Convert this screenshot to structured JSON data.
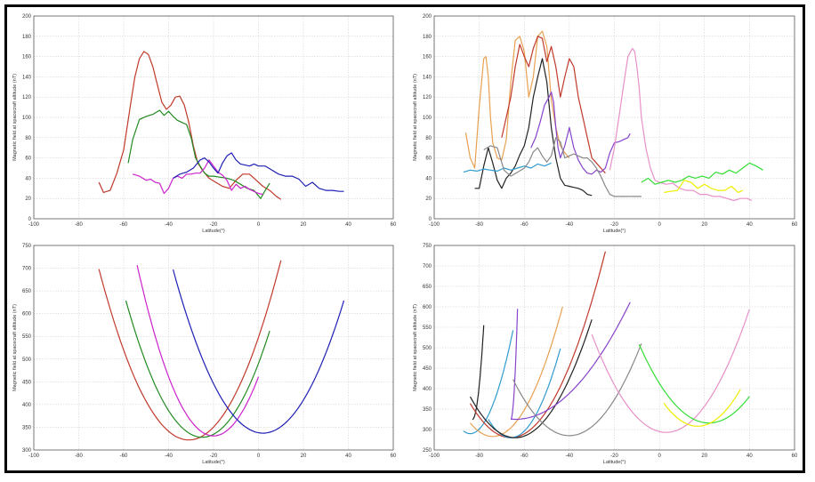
{
  "chart_data": [
    {
      "type": "line",
      "xlabel": "Latitude(°)",
      "ylabel": "Magnetic field at spacecraft altitude (nT)",
      "xlim": [
        -100,
        60
      ],
      "ylim": [
        0,
        200
      ],
      "xticks": [
        -100,
        -80,
        -60,
        -40,
        -20,
        0,
        20,
        40,
        60
      ],
      "yticks": [
        0,
        20,
        40,
        60,
        80,
        100,
        120,
        140,
        160,
        180,
        200
      ],
      "grid": true,
      "series": [
        {
          "color": "#c0392b",
          "x": [
            -71,
            -69,
            -66,
            -63,
            -60,
            -57,
            -55,
            -53,
            -51,
            -49,
            -47,
            -45,
            -43,
            -41,
            -39,
            -37,
            -35,
            -33,
            -31,
            -29,
            -27,
            -25,
            -22,
            -19,
            -16,
            -13,
            -10,
            -7,
            -4,
            -1,
            2,
            5,
            8,
            10
          ],
          "y": [
            36,
            26,
            28,
            45,
            68,
            112,
            140,
            158,
            165,
            162,
            150,
            132,
            115,
            108,
            112,
            120,
            121,
            112,
            95,
            72,
            55,
            48,
            40,
            36,
            32,
            30,
            38,
            44,
            44,
            38,
            32,
            28,
            22,
            19
          ]
        },
        {
          "color": "#228b22",
          "x": [
            -58,
            -56,
            -53,
            -50,
            -47,
            -44,
            -42,
            -40,
            -38,
            -36,
            -34,
            -32,
            -30,
            -28,
            -26,
            -24,
            -22,
            -20,
            -17,
            -14,
            -11,
            -8,
            -5,
            -2,
            1,
            3,
            5
          ],
          "y": [
            55,
            78,
            98,
            101,
            103,
            107,
            102,
            106,
            101,
            97,
            95,
            93,
            80,
            60,
            52,
            45,
            42,
            42,
            41,
            40,
            38,
            34,
            30,
            28,
            20,
            28,
            35
          ]
        },
        {
          "color": "#cc22cc",
          "x": [
            -56,
            -53,
            -50,
            -48,
            -46,
            -44,
            -42,
            -40,
            -38,
            -36,
            -34,
            -32,
            -30,
            -28,
            -26,
            -24,
            -22,
            -20,
            -18,
            -16,
            -14,
            -12,
            -10,
            -8,
            -6,
            -4,
            -2,
            0,
            2
          ],
          "y": [
            44,
            42,
            38,
            39,
            36,
            35,
            25,
            30,
            40,
            42,
            40,
            44,
            44,
            45,
            45,
            50,
            58,
            52,
            46,
            43,
            38,
            28,
            34,
            30,
            32,
            29,
            27,
            25,
            24
          ]
        },
        {
          "color": "#1f1fb4",
          "x": [
            -38,
            -35,
            -32,
            -29,
            -26,
            -24,
            -22,
            -20,
            -18,
            -16,
            -14,
            -12,
            -10,
            -8,
            -6,
            -4,
            -2,
            0,
            3,
            6,
            9,
            12,
            15,
            18,
            21,
            24,
            27,
            30,
            33,
            36,
            38
          ],
          "y": [
            40,
            44,
            46,
            50,
            58,
            60,
            56,
            50,
            45,
            55,
            62,
            65,
            58,
            54,
            53,
            52,
            54,
            52,
            52,
            48,
            44,
            42,
            42,
            39,
            32,
            36,
            30,
            28,
            28,
            27,
            27
          ]
        }
      ]
    },
    {
      "type": "line",
      "xlabel": "Latitude(°)",
      "ylabel": "Magnetic field at spacecraft altitude (nT)",
      "xlim": [
        -100,
        60
      ],
      "ylim": [
        0,
        200
      ],
      "xticks": [
        -100,
        -80,
        -60,
        -40,
        -20,
        0,
        20,
        40,
        60
      ],
      "yticks": [
        0,
        20,
        40,
        60,
        80,
        100,
        120,
        140,
        160,
        180,
        200
      ],
      "grid": true,
      "series": [
        {
          "color": "#222222",
          "x": [
            -82,
            -80,
            -78,
            -76,
            -74,
            -72,
            -70,
            -68,
            -66,
            -64,
            -62,
            -60,
            -58,
            -56,
            -54,
            -52,
            -50,
            -48,
            -46,
            -44,
            -42,
            -40,
            -38,
            -36,
            -34,
            -32,
            -30
          ],
          "y": [
            30,
            30,
            52,
            70,
            55,
            38,
            30,
            40,
            45,
            52,
            63,
            72,
            90,
            120,
            140,
            158,
            135,
            90,
            60,
            40,
            33,
            32,
            31,
            30,
            28,
            24,
            23
          ]
        },
        {
          "color": "#e8a050",
          "x": [
            -86,
            -84,
            -82,
            -80,
            -78,
            -77,
            -76,
            -75,
            -74,
            -72,
            -70,
            -68,
            -66,
            -64,
            -62,
            -60,
            -58,
            -56,
            -54,
            -52,
            -50,
            -48,
            -46,
            -44,
            -42,
            -40
          ],
          "y": [
            85,
            60,
            50,
            110,
            158,
            160,
            140,
            100,
            75,
            60,
            58,
            78,
            135,
            176,
            180,
            165,
            120,
            140,
            180,
            185,
            170,
            118,
            90,
            72,
            65,
            60
          ]
        },
        {
          "color": "#c0392b",
          "x": [
            -70,
            -68,
            -66,
            -64,
            -62,
            -60,
            -58,
            -56,
            -54,
            -52,
            -50,
            -48,
            -46,
            -44,
            -42,
            -40,
            -38,
            -36,
            -34,
            -32,
            -30,
            -28,
            -26,
            -24
          ],
          "y": [
            80,
            100,
            120,
            150,
            172,
            160,
            150,
            168,
            180,
            178,
            155,
            170,
            150,
            120,
            140,
            158,
            150,
            120,
            100,
            80,
            60,
            55,
            50,
            45
          ]
        },
        {
          "color": "#2f9bd0",
          "x": [
            -87,
            -84,
            -81,
            -78,
            -75,
            -72,
            -69,
            -66,
            -63,
            -60,
            -57,
            -54,
            -51,
            -48
          ],
          "y": [
            46,
            48,
            47,
            49,
            48,
            47,
            50,
            48,
            50,
            52,
            50,
            54,
            52,
            55
          ]
        },
        {
          "color": "#8844cc",
          "x": [
            -57,
            -55,
            -53,
            -51,
            -49,
            -48,
            -47,
            -46,
            -45,
            -44,
            -42,
            -40,
            -38,
            -36,
            -34,
            -32,
            -30,
            -28,
            -26,
            -24,
            -22,
            -20,
            -18,
            -16,
            -14,
            -13
          ],
          "y": [
            70,
            80,
            95,
            112,
            120,
            125,
            115,
            90,
            70,
            60,
            72,
            90,
            70,
            58,
            50,
            45,
            44,
            48,
            46,
            50,
            65,
            75,
            76,
            78,
            80,
            84
          ]
        },
        {
          "color": "#888888",
          "x": [
            -78,
            -75,
            -72,
            -69,
            -66,
            -63,
            -60,
            -58,
            -56,
            -54,
            -52,
            -50,
            -48,
            -46,
            -44,
            -42,
            -40,
            -38,
            -36,
            -34,
            -32,
            -30,
            -28,
            -26,
            -24,
            -22,
            -20,
            -17,
            -14,
            -11,
            -8
          ],
          "y": [
            68,
            72,
            70,
            48,
            42,
            46,
            50,
            56,
            66,
            70,
            62,
            56,
            62,
            80,
            76,
            60,
            62,
            64,
            62,
            60,
            60,
            56,
            50,
            42,
            32,
            24,
            22,
            22,
            22,
            22,
            22
          ]
        },
        {
          "color": "#e890c8",
          "x": [
            -22,
            -20,
            -18,
            -16,
            -14,
            -12,
            -11,
            -10,
            -9,
            -8,
            -6,
            -4,
            -2,
            0,
            3,
            6,
            9,
            12,
            15,
            18,
            21,
            24,
            27,
            30,
            33,
            36,
            39,
            41
          ],
          "y": [
            48,
            70,
            100,
            130,
            160,
            168,
            165,
            150,
            130,
            100,
            70,
            50,
            38,
            36,
            34,
            35,
            30,
            28,
            28,
            24,
            24,
            22,
            22,
            20,
            18,
            20,
            20,
            18
          ]
        },
        {
          "color": "#33dd33",
          "x": [
            -8,
            -5,
            -2,
            1,
            4,
            7,
            10,
            13,
            16,
            19,
            22,
            25,
            28,
            31,
            34,
            37,
            40,
            43,
            46
          ],
          "y": [
            36,
            40,
            34,
            36,
            38,
            36,
            38,
            42,
            40,
            42,
            40,
            46,
            44,
            48,
            45,
            50,
            55,
            52,
            48
          ]
        },
        {
          "color": "#eeee00",
          "x": [
            2,
            5,
            8,
            11,
            14,
            17,
            20,
            23,
            26,
            29,
            32,
            35,
            37
          ],
          "y": [
            26,
            27,
            28,
            38,
            36,
            30,
            34,
            30,
            28,
            28,
            32,
            26,
            28
          ]
        }
      ]
    },
    {
      "type": "line",
      "xlabel": "Latitude(°)",
      "ylabel": "Magnetic field at spacecraft altitude (nT)",
      "xlim": [
        -100,
        60
      ],
      "ylim": [
        300,
        750
      ],
      "xticks": [
        -100,
        -80,
        -60,
        -40,
        -20,
        0,
        20,
        40,
        60
      ],
      "yticks": [
        300,
        350,
        400,
        450,
        500,
        550,
        600,
        650,
        700,
        750
      ],
      "grid": true,
      "curve_model": "parabola y = ymin + k*(x - xmin)^2",
      "series": [
        {
          "color": "#c0392b",
          "xmin": -31,
          "ymin": 322,
          "range": [
            -71,
            10
          ],
          "k": 0.235
        },
        {
          "color": "#228b22",
          "xmin": -25,
          "ymin": 328,
          "range": [
            -59,
            5
          ],
          "k": 0.26
        },
        {
          "color": "#cc22cc",
          "xmin": -20,
          "ymin": 331,
          "range": [
            -54,
            0
          ],
          "k": 0.325
        },
        {
          "color": "#1f1fb4",
          "xmin": 2,
          "ymin": 337,
          "range": [
            -38,
            38
          ],
          "k": 0.225
        }
      ]
    },
    {
      "type": "line",
      "xlabel": "Latitude(°)",
      "ylabel": "Magnetic field at spacecraft altitude (nT)",
      "xlim": [
        -100,
        60
      ],
      "ylim": [
        250,
        750
      ],
      "xticks": [
        -100,
        -80,
        -60,
        -40,
        -20,
        0,
        20,
        40,
        60
      ],
      "yticks": [
        250,
        300,
        350,
        400,
        450,
        500,
        550,
        600,
        650,
        700,
        750
      ],
      "grid": true,
      "curve_model": "parabola y = ymin + k*(x - xmin)^2",
      "series": [
        {
          "color": "#222222",
          "xmin": -83,
          "ymin": 325,
          "range": [
            -83,
            -78
          ],
          "k": 9.2
        },
        {
          "color": "#2f9bd0",
          "xmin": -84,
          "ymin": 290,
          "range": [
            -87,
            -65
          ],
          "k": 0.7
        },
        {
          "color": "#e8a050",
          "xmin": -74,
          "ymin": 283,
          "range": [
            -84,
            -43
          ],
          "k": 0.33
        },
        {
          "color": "#c0392b",
          "xmin": -66,
          "ymin": 280,
          "range": [
            -84,
            -24
          ],
          "k": 0.258
        },
        {
          "color": "#2f9bd0",
          "xmin": -66,
          "ymin": 280,
          "range": [
            -76,
            -44
          ],
          "k": 0.45
        },
        {
          "color": "#222222",
          "xmin": -64,
          "ymin": 280,
          "range": [
            -84,
            -30
          ],
          "k": 0.25
        },
        {
          "color": "#8844cc",
          "xmin": -64,
          "ymin": 325,
          "range": [
            -66,
            -13
          ],
          "k": 0.11
        },
        {
          "color": "#8844cc",
          "xmin": -66,
          "ymin": 325,
          "range": [
            -66,
            -63
          ],
          "k": 30
        },
        {
          "color": "#888888",
          "xmin": -40,
          "ymin": 285,
          "range": [
            -65,
            -8
          ],
          "k": 0.22
        },
        {
          "color": "#e890c8",
          "xmin": 3,
          "ymin": 293,
          "range": [
            -30,
            40
          ],
          "k": 0.22
        },
        {
          "color": "#33dd33",
          "xmin": 22,
          "ymin": 316,
          "range": [
            -9,
            40
          ],
          "k": 0.2
        },
        {
          "color": "#eeee00",
          "xmin": 17,
          "ymin": 308,
          "range": [
            2,
            36
          ],
          "k": 0.25
        }
      ]
    }
  ]
}
